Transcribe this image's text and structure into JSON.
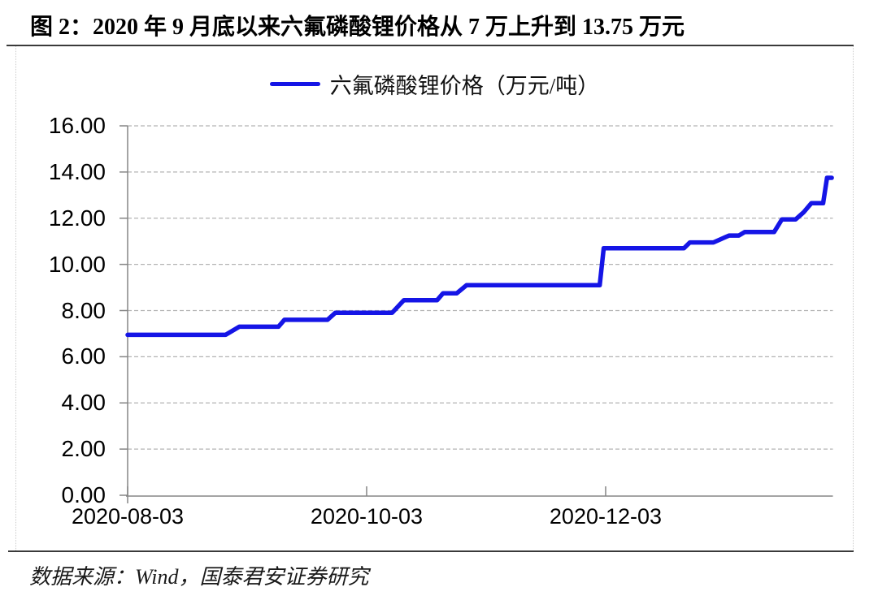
{
  "title": "图 2：2020 年 9 月底以来六氟磷酸锂价格从 7 万上升到 13.75 万元",
  "source": "数据来源：Wind，国泰君安证券研究",
  "legend": {
    "label": "六氟磷酸锂价格（万元/吨）"
  },
  "colors": {
    "line": "#1515e6",
    "grid": "#b3b3b3",
    "axis": "#858585",
    "rule": "#3a3a3a",
    "box_border": "#cccccc",
    "text": "#000000"
  },
  "chart_data": {
    "type": "line",
    "title": "六氟磷酸锂价格（万元/吨）",
    "xlabel": "",
    "ylabel": "",
    "x_unit": "days since 2020-08-03",
    "xlim": [
      0,
      180
    ],
    "ylim": [
      0,
      16
    ],
    "grid": "horizontal-dashed",
    "legend_position": "top-center",
    "y_ticks": [
      {
        "v": 0,
        "label": "0.00"
      },
      {
        "v": 2,
        "label": "2.00"
      },
      {
        "v": 4,
        "label": "4.00"
      },
      {
        "v": 6,
        "label": "6.00"
      },
      {
        "v": 8,
        "label": "8.00"
      },
      {
        "v": 10,
        "label": "10.00"
      },
      {
        "v": 12,
        "label": "12.00"
      },
      {
        "v": 14,
        "label": "14.00"
      },
      {
        "v": 16,
        "label": "16.00"
      }
    ],
    "x_ticks": [
      {
        "d": 0,
        "label": "2020-08-03"
      },
      {
        "d": 61,
        "label": "2020-10-03"
      },
      {
        "d": 122,
        "label": "2020-12-03"
      }
    ],
    "series": [
      {
        "name": "六氟磷酸锂价格（万元/吨）",
        "points": [
          [
            0,
            6.95
          ],
          [
            25,
            6.95
          ],
          [
            28.5,
            7.3
          ],
          [
            38.5,
            7.3
          ],
          [
            40,
            7.6
          ],
          [
            51,
            7.6
          ],
          [
            53,
            7.9
          ],
          [
            67.5,
            7.9
          ],
          [
            70.5,
            8.45
          ],
          [
            79,
            8.45
          ],
          [
            80.5,
            8.75
          ],
          [
            84,
            8.75
          ],
          [
            86.5,
            9.1
          ],
          [
            120.5,
            9.1
          ],
          [
            121.5,
            10.7
          ],
          [
            142,
            10.7
          ],
          [
            143.5,
            10.95
          ],
          [
            149.5,
            10.95
          ],
          [
            153.5,
            11.25
          ],
          [
            156,
            11.25
          ],
          [
            157.5,
            11.4
          ],
          [
            165,
            11.4
          ],
          [
            167,
            11.95
          ],
          [
            170.5,
            11.95
          ],
          [
            172.5,
            12.25
          ],
          [
            174.5,
            12.65
          ],
          [
            177.5,
            12.65
          ],
          [
            178.5,
            13.75
          ],
          [
            179.7,
            13.75
          ]
        ]
      }
    ]
  }
}
